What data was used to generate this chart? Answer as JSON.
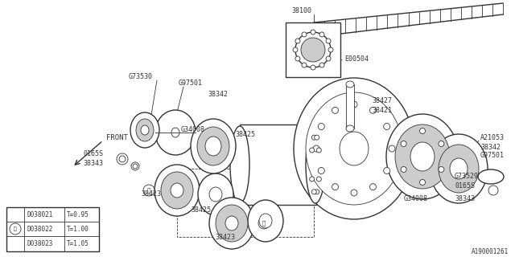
{
  "bg_color": "#ffffff",
  "line_color": "#333333",
  "part_number": "A190001261",
  "table_data": [
    [
      "D038021",
      "T=0.95"
    ],
    [
      "D038022",
      "T=1.00"
    ],
    [
      "D038023",
      "T=1.05"
    ]
  ]
}
